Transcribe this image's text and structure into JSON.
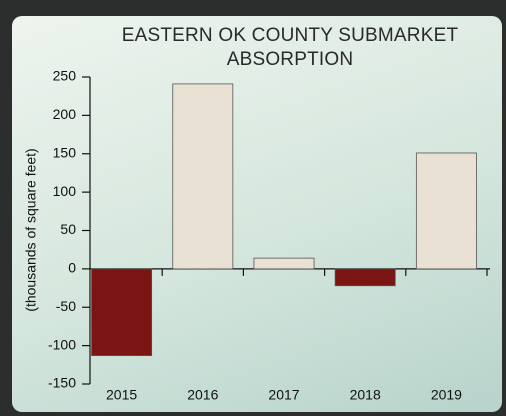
{
  "chart_data": {
    "type": "bar",
    "title": "EASTERN OK COUNTY SUBMARKET ABSORPTION",
    "ylabel": "(thousands of square feet)",
    "categories": [
      "2015",
      "2016",
      "2017",
      "2018",
      "2019"
    ],
    "values": [
      -113,
      241,
      14,
      -22,
      151
    ],
    "colors": [
      "#7a1513",
      "#e9e2d4",
      "#e9e2d4",
      "#7a1513",
      "#e9e2d4"
    ],
    "ylim": [
      -150,
      250
    ],
    "yticks": [
      -150,
      -100,
      -50,
      0,
      50,
      100,
      150,
      200,
      250
    ],
    "grid": false
  }
}
